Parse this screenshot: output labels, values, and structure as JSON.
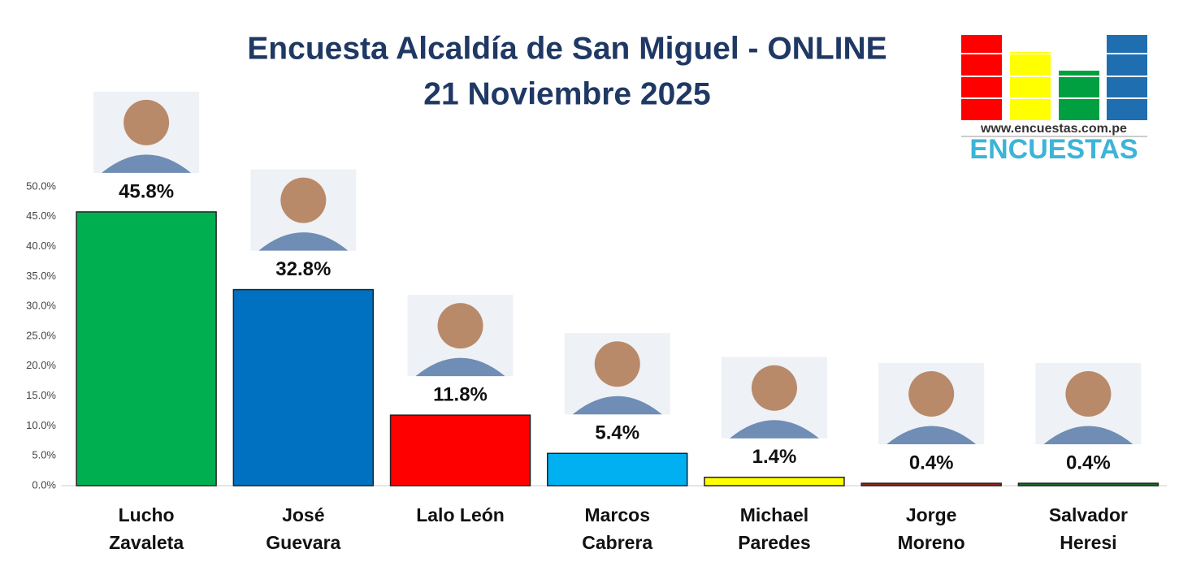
{
  "chart_data": {
    "type": "bar",
    "title": "Encuesta Alcaldía de San Miguel -  ONLINE",
    "subtitle": "21 Noviembre 2025",
    "logo_url": "www.encuestas.com.pe",
    "logo_name": "ENCUESTAS",
    "categories": [
      "Lucho Zavaleta",
      "José Guevara",
      "Lalo León",
      "Marcos Cabrera",
      "Michael Paredes",
      "Jorge Moreno",
      "Salvador Heresi"
    ],
    "values": [
      45.8,
      32.8,
      11.8,
      5.4,
      1.4,
      0.4,
      0.4
    ],
    "value_labels": [
      "45.8%",
      "32.8%",
      "11.8%",
      "5.4%",
      "1.4%",
      "0.4%",
      "0.4%"
    ],
    "colors": [
      "#00b050",
      "#0070c0",
      "#ff0000",
      "#00b0f0",
      "#ffff00",
      "#8b2a1e",
      "#1e6b2a"
    ],
    "ylim": [
      0,
      50
    ],
    "yticks": [
      {
        "value": 0,
        "label": "0.0%"
      },
      {
        "value": 5,
        "label": "5.0%"
      },
      {
        "value": 10,
        "label": "10.0%"
      },
      {
        "value": 15,
        "label": "15.0%"
      },
      {
        "value": 20,
        "label": "20.0%"
      },
      {
        "value": 25,
        "label": "25.0%"
      },
      {
        "value": 30,
        "label": "30.0%"
      },
      {
        "value": 35,
        "label": "35.0%"
      },
      {
        "value": 40,
        "label": "40.0%"
      },
      {
        "value": 45,
        "label": "45.0%"
      },
      {
        "value": 50,
        "label": "50.0%"
      }
    ],
    "grid": false
  }
}
